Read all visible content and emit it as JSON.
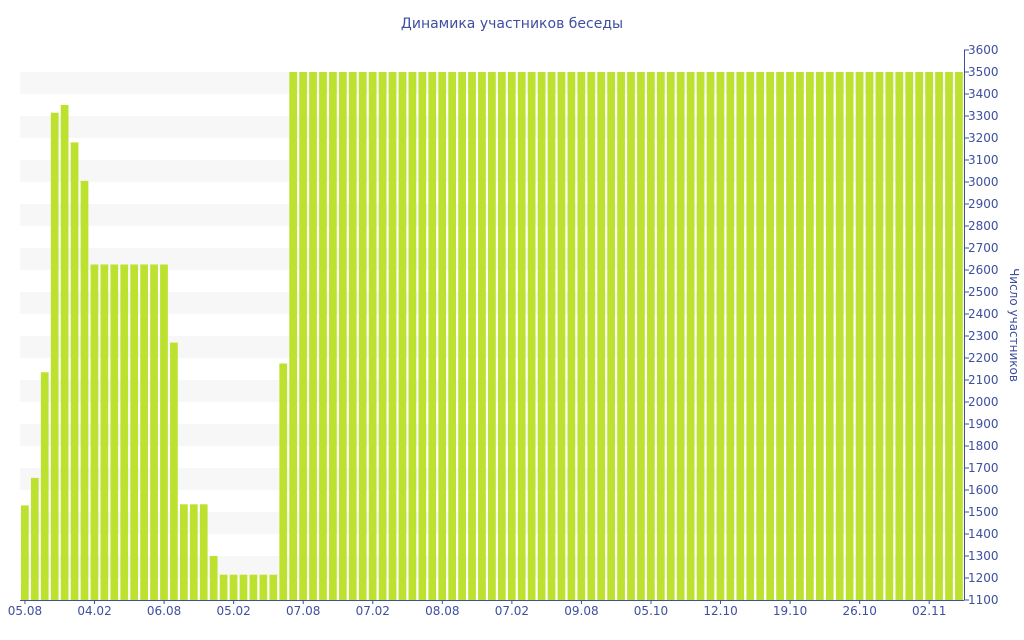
{
  "chart_data": {
    "type": "bar",
    "title": "Динамика участников беседы",
    "ylabel": "Число участников",
    "xlabel": "",
    "ylim": [
      1100,
      3600
    ],
    "yticks": [
      1100,
      1200,
      1300,
      1400,
      1500,
      1600,
      1700,
      1800,
      1900,
      2000,
      2100,
      2200,
      2300,
      2400,
      2500,
      2600,
      2700,
      2800,
      2900,
      3000,
      3100,
      3200,
      3300,
      3400,
      3500,
      3600
    ],
    "y_axis_side": "right",
    "grid": "alternating horizontal bands",
    "bar_color": "#bde12f",
    "axis_color": "#3d4f9f",
    "x_tick_labels": [
      "05.08",
      "04.02",
      "06.08",
      "05.02",
      "07.08",
      "07.02",
      "08.08",
      "07.02",
      "09.08",
      "05.10",
      "12.10",
      "19.10",
      "26.10",
      "02.11"
    ],
    "x_tick_every": 7,
    "values": [
      1530,
      1655,
      2135,
      3315,
      3350,
      3180,
      3005,
      2625,
      2625,
      2625,
      2625,
      2625,
      2625,
      2625,
      2625,
      2270,
      1535,
      1535,
      1535,
      1300,
      1215,
      1215,
      1215,
      1215,
      1215,
      1215,
      2175,
      3500,
      3500,
      3500,
      3500,
      3500,
      3500,
      3500,
      3500,
      3500,
      3500,
      3500,
      3500,
      3500,
      3500,
      3500,
      3500,
      3500,
      3500,
      3500,
      3500,
      3500,
      3500,
      3500,
      3500,
      3500,
      3500,
      3500,
      3500,
      3500,
      3500,
      3500,
      3500,
      3500,
      3500,
      3500,
      3500,
      3500,
      3500,
      3500,
      3500,
      3500,
      3500,
      3500,
      3500,
      3500,
      3500,
      3500,
      3500,
      3500,
      3500,
      3500,
      3500,
      3500,
      3500,
      3500,
      3500,
      3500,
      3500,
      3500,
      3500,
      3500,
      3500,
      3500,
      3500,
      3500,
      3500,
      3500,
      3500
    ]
  }
}
